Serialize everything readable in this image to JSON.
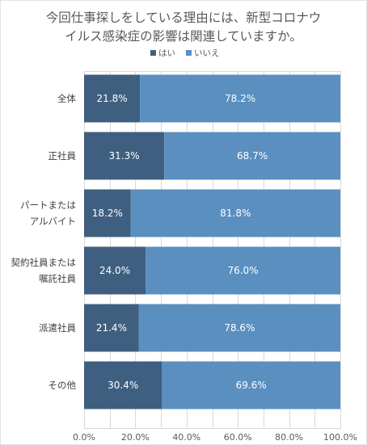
{
  "chart_data": {
    "type": "bar",
    "orientation": "horizontal",
    "stacked": true,
    "title": [
      "今回仕事探しをしている理由には、新型コロナウ",
      "イルス感染症の影響は関連していますか。"
    ],
    "categories": [
      [
        "全体"
      ],
      [
        "正社員"
      ],
      [
        "パートまたは",
        "アルバイト"
      ],
      [
        "契約社員または",
        "嘱託社員"
      ],
      [
        "派遣社員"
      ],
      [
        "その他"
      ]
    ],
    "series": [
      {
        "name": "はい",
        "color": "#3f5f80",
        "values": [
          21.8,
          31.3,
          18.2,
          24.0,
          21.4,
          30.4
        ]
      },
      {
        "name": "いいえ",
        "color": "#5a8fc0",
        "values": [
          78.2,
          68.7,
          81.8,
          76.0,
          78.6,
          69.6
        ]
      }
    ],
    "xticks": [
      "0.0%",
      "20.0%",
      "40.0%",
      "60.0%",
      "80.0%",
      "100.0%"
    ],
    "xlim": [
      0,
      100
    ],
    "grid": true,
    "legend": "top-center",
    "data_labels": true
  }
}
